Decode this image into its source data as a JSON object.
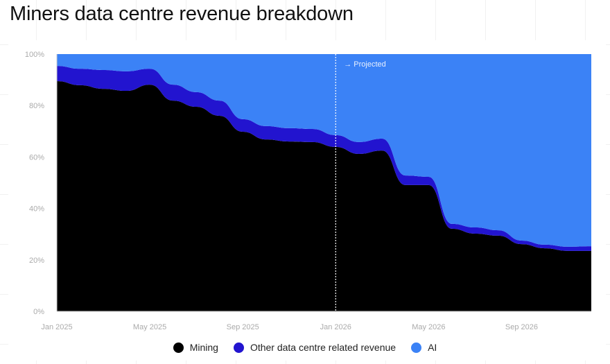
{
  "title": "Miners data centre revenue breakdown",
  "chart_data": {
    "type": "area",
    "stacked": true,
    "title": "Miners data centre revenue breakdown",
    "x": [
      "Jan 2025",
      "Feb 2025",
      "Mar 2025",
      "Apr 2025",
      "May 2025",
      "Jun 2025",
      "Jul 2025",
      "Aug 2025",
      "Sep 2025",
      "Oct 2025",
      "Nov 2025",
      "Dec 2025",
      "Jan 2026",
      "Feb 2026",
      "Mar 2026",
      "Apr 2026",
      "May 2026",
      "Jun 2026",
      "Jul 2026",
      "Aug 2026",
      "Sep 2026",
      "Oct 2026",
      "Nov 2026",
      "Dec 2026"
    ],
    "x_ticks": [
      "Jan 2025",
      "May 2025",
      "Sep 2025",
      "Jan 2026",
      "May 2026",
      "Sep 2026"
    ],
    "y_ticks": [
      "0%",
      "20%",
      "40%",
      "60%",
      "80%",
      "100%"
    ],
    "ylim": [
      0,
      100
    ],
    "yunit": "%",
    "series": [
      {
        "name": "Mining",
        "color": "#000000",
        "values": [
          89.5,
          87.9,
          86.5,
          85.7,
          88.1,
          81.9,
          79.5,
          76.0,
          69.8,
          66.8,
          66.0,
          65.8,
          63.9,
          61.2,
          62.5,
          49.1,
          49.1,
          32.1,
          30.2,
          29.4,
          26.1,
          24.5,
          23.5,
          23.5
        ]
      },
      {
        "name": "Other data centre related revenue",
        "color": "#2214cf",
        "values": [
          5.9,
          6.4,
          7.3,
          7.6,
          6.2,
          6.2,
          5.7,
          5.9,
          4.9,
          5.2,
          5.2,
          5.1,
          4.6,
          4.6,
          4.6,
          3.7,
          3.2,
          1.9,
          2.4,
          2.1,
          1.4,
          1.4,
          1.6,
          1.8
        ]
      },
      {
        "name": "AI",
        "color": "#3b82f6",
        "values": [
          4.6,
          5.7,
          6.2,
          6.7,
          5.7,
          11.9,
          14.8,
          18.1,
          25.3,
          28.0,
          28.8,
          29.1,
          31.5,
          34.2,
          32.9,
          47.2,
          47.7,
          66.0,
          67.4,
          68.5,
          72.5,
          74.1,
          74.9,
          74.7
        ]
      }
    ],
    "annotation": {
      "label": "→ Projected",
      "at": "Jan 2026",
      "style": "dashed vertical line"
    },
    "legend_placement": "bottom",
    "grid": false
  }
}
